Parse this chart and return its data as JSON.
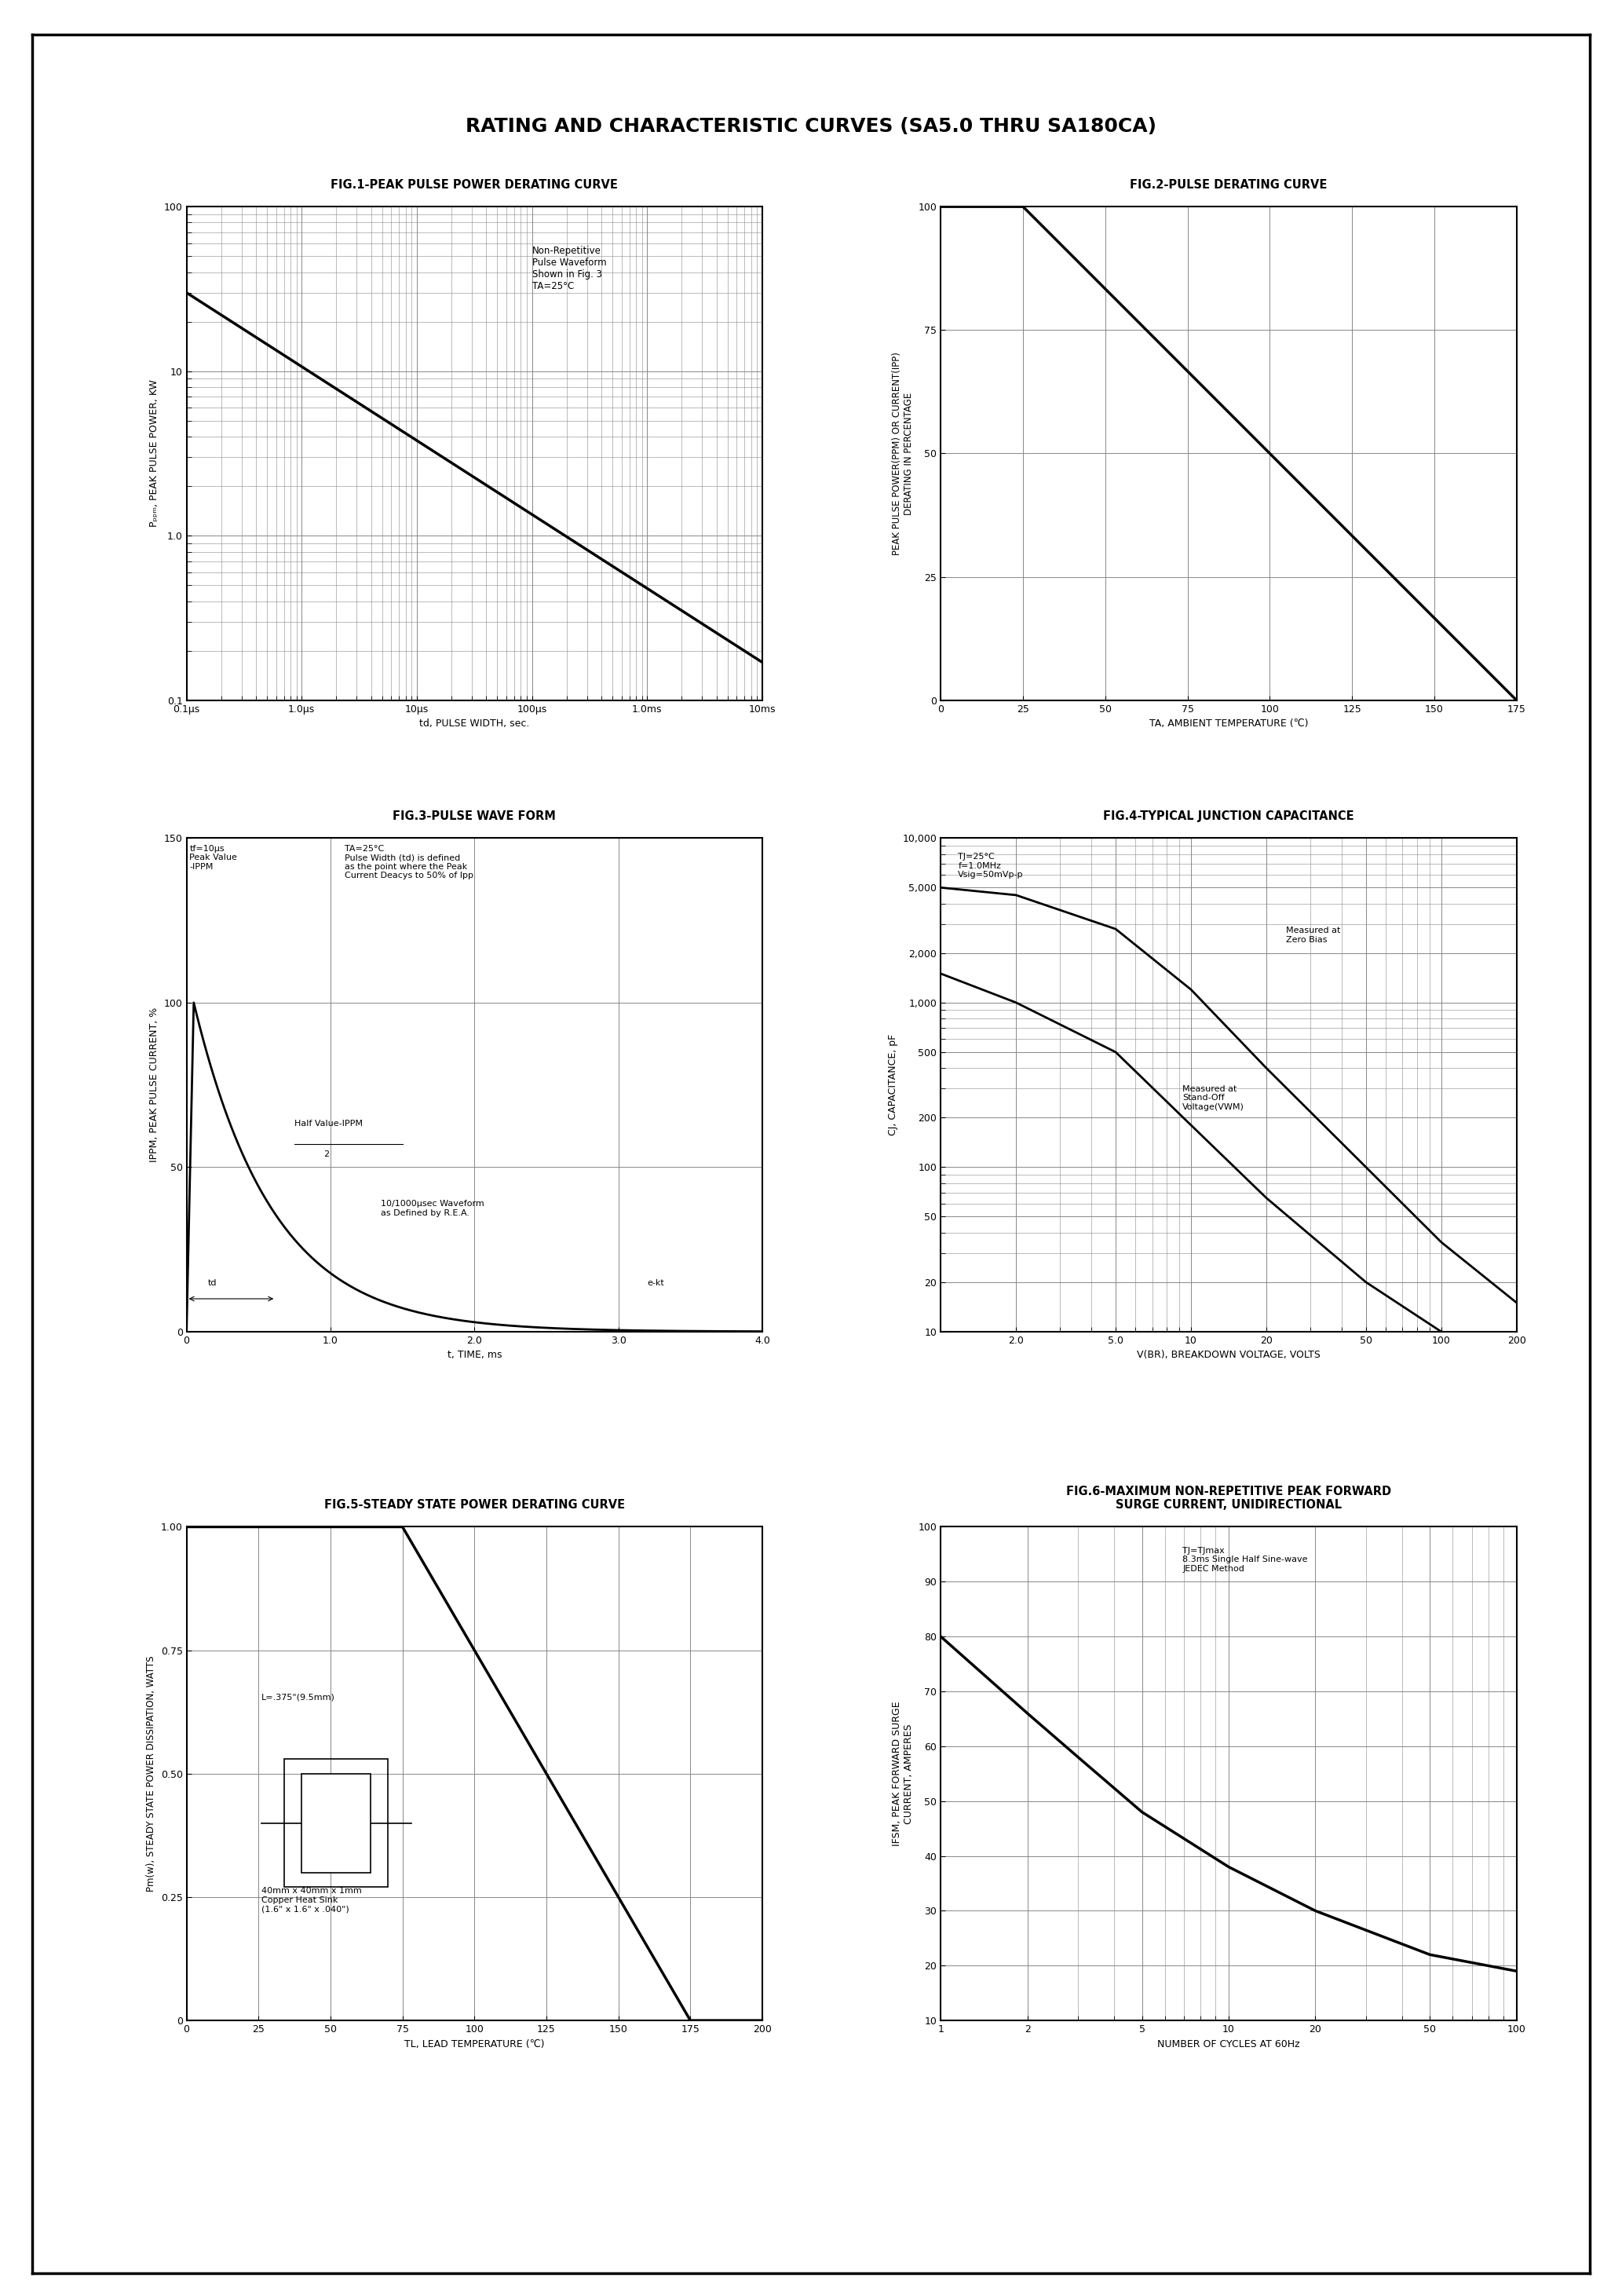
{
  "title": "RATING AND CHARACTERISTIC CURVES (SA5.0 THRU SA180CA)",
  "fig1_title": "FIG.1-PEAK PULSE POWER DERATING CURVE",
  "fig2_title": "FIG.2-PULSE DERATING CURVE",
  "fig3_title": "FIG.3-PULSE WAVE FORM",
  "fig4_title": "FIG.4-TYPICAL JUNCTION CAPACITANCE",
  "fig5_title": "FIG.5-STEADY STATE POWER DERATING CURVE",
  "fig6_title": "FIG.6-MAXIMUM NON-REPETITIVE PEAK FORWARD\nSURGE CURRENT, UNIDIRECTIONAL",
  "bg_color": "#ffffff",
  "line_color": "#000000",
  "grid_color": "#888888",
  "border_color": "#000000",
  "fig1_annotation": "Non-Repetitive\nPulse Waveform\nShown in Fig. 3\nTA=25°C",
  "fig3_annotation1": "tf=10μs\nPeak Value\nIPPM",
  "fig3_annotation2": "TA=25°C\nPulse Width (td) is defined\nas the point where the Peak\nCurrent Deacys to 50% of Ipp",
  "fig3_annotation3": "Half Value-IPPM\n          2",
  "fig3_annotation4": "10/1000μsec Waveform\nas Defined by R.E.A.",
  "fig4_annotation1": "TJ=25°C\nf=1.0MHz\nVsig=50mVp-p",
  "fig4_annotation2": "Measured at\nZero Bias",
  "fig4_annotation3": "Measured at\nStand-Off\nVoltage(VWM)",
  "fig5_annotation1": "L=.375\"(9.5mm)",
  "fig5_annotation2": "40mm x 40mm x 1mm\nCopper Heat Sink\n(1.6\" x 1.6\" x .040\")",
  "fig6_annotation": "TJ=TJmax\n8.3ms Single Half Sine-wave\nJEDEC Method"
}
